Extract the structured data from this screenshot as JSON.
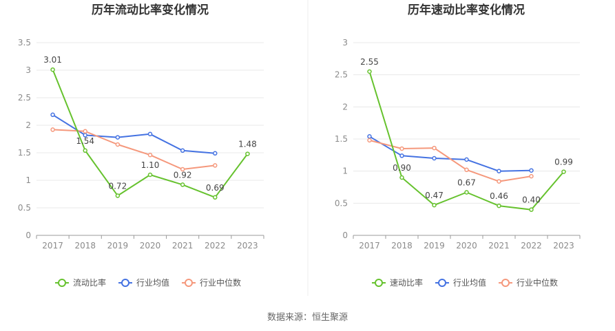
{
  "colors": {
    "primary": "#66c22e",
    "industry_avg": "#4472e2",
    "industry_median": "#f5987c",
    "grid": "#e8e8e8",
    "axis": "#999999"
  },
  "chart_data": [
    {
      "type": "line",
      "title": "历年流动比率变化情况",
      "categories": [
        "2017",
        "2018",
        "2019",
        "2020",
        "2021",
        "2022",
        "2023"
      ],
      "ylim": [
        0,
        3.5
      ],
      "yticks": [
        "0",
        "0.5",
        "1",
        "1.5",
        "2",
        "2.5",
        "3",
        "3.5"
      ],
      "grid": true,
      "legend": "bottom",
      "series": [
        {
          "name": "流动比率",
          "values": [
            3.01,
            1.54,
            0.72,
            1.1,
            0.92,
            0.69,
            1.48
          ],
          "labels": [
            "3.01",
            "1.54",
            "0.72",
            "1.10",
            "0.92",
            "0.69",
            "1.48"
          ],
          "color": "#66c22e"
        },
        {
          "name": "行业均值",
          "values": [
            2.19,
            1.82,
            1.78,
            1.84,
            1.54,
            1.49,
            null
          ],
          "color": "#4472e2"
        },
        {
          "name": "行业中位数",
          "values": [
            1.92,
            1.89,
            1.65,
            1.46,
            1.2,
            1.27,
            null
          ],
          "color": "#f5987c"
        }
      ]
    },
    {
      "type": "line",
      "title": "历年速动比率变化情况",
      "categories": [
        "2017",
        "2018",
        "2019",
        "2020",
        "2021",
        "2022",
        "2023"
      ],
      "ylim": [
        0,
        3
      ],
      "yticks": [
        "0",
        "0.5",
        "1",
        "1.5",
        "2",
        "2.5",
        "3"
      ],
      "grid": true,
      "legend": "bottom",
      "series": [
        {
          "name": "速动比率",
          "values": [
            2.55,
            0.9,
            0.47,
            0.67,
            0.46,
            0.4,
            0.99
          ],
          "labels": [
            "2.55",
            "0.90",
            "0.47",
            "0.67",
            "0.46",
            "0.40",
            "0.99"
          ],
          "color": "#66c22e"
        },
        {
          "name": "行业均值",
          "values": [
            1.54,
            1.24,
            1.2,
            1.18,
            1.0,
            1.01,
            null
          ],
          "color": "#4472e2"
        },
        {
          "name": "行业中位数",
          "values": [
            1.48,
            1.35,
            1.36,
            1.02,
            0.84,
            0.92,
            null
          ],
          "color": "#f5987c"
        }
      ]
    }
  ],
  "footer": {
    "source": "数据来源：恒生聚源"
  }
}
